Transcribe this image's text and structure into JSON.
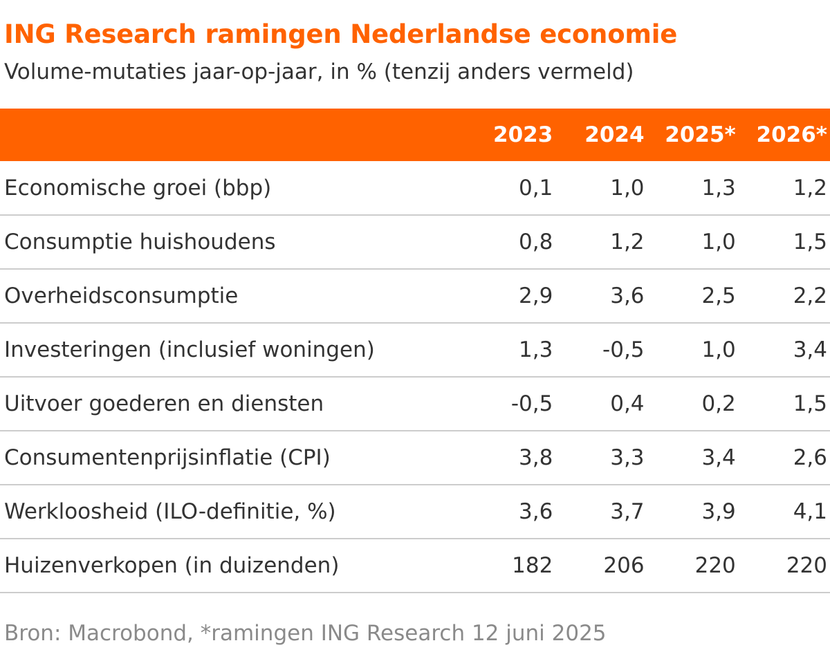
{
  "title": "ING Research ramingen Nederlandse economie",
  "subtitle": "Volume-mutaties jaar-op-jaar, in % (tenzij anders vermeld)",
  "source": "Bron: Macrobond, *ramingen ING Research 12 juni 2025",
  "colors": {
    "accent": "#ff6200",
    "text": "#333333",
    "source_text": "#8a8a8a",
    "row_divider": "#cccccc"
  },
  "chart_data": {
    "type": "table",
    "title": "ING Research ramingen Nederlandse economie",
    "subtitle": "Volume-mutaties jaar-op-jaar, in % (tenzij anders vermeld)",
    "columns": [
      "2023",
      "2024",
      "2025*",
      "2026*"
    ],
    "rows": [
      {
        "label": "Economische groei (bbp)",
        "values": [
          "0,1",
          "1,0",
          "1,3",
          "1,2"
        ]
      },
      {
        "label": "Consumptie huishoudens",
        "values": [
          "0,8",
          "1,2",
          "1,0",
          "1,5"
        ]
      },
      {
        "label": "Overheidsconsumptie",
        "values": [
          "2,9",
          "3,6",
          "2,5",
          "2,2"
        ]
      },
      {
        "label": "Investeringen (inclusief woningen)",
        "values": [
          "1,3",
          "-0,5",
          "1,0",
          "3,4"
        ]
      },
      {
        "label": "Uitvoer goederen en diensten",
        "values": [
          "-0,5",
          "0,4",
          "0,2",
          "1,5"
        ]
      },
      {
        "label": "Consumentenprijsinflatie (CPI)",
        "values": [
          "3,8",
          "3,3",
          "3,4",
          "2,6"
        ]
      },
      {
        "label": "Werkloosheid (ILO-definitie, %)",
        "values": [
          "3,6",
          "3,7",
          "3,9",
          "4,1"
        ]
      },
      {
        "label": "Huizenverkopen (in duizenden)",
        "values": [
          "182",
          "206",
          "220",
          "220"
        ]
      }
    ],
    "source": "Bron: Macrobond, *ramingen ING Research 12 juni 2025"
  }
}
